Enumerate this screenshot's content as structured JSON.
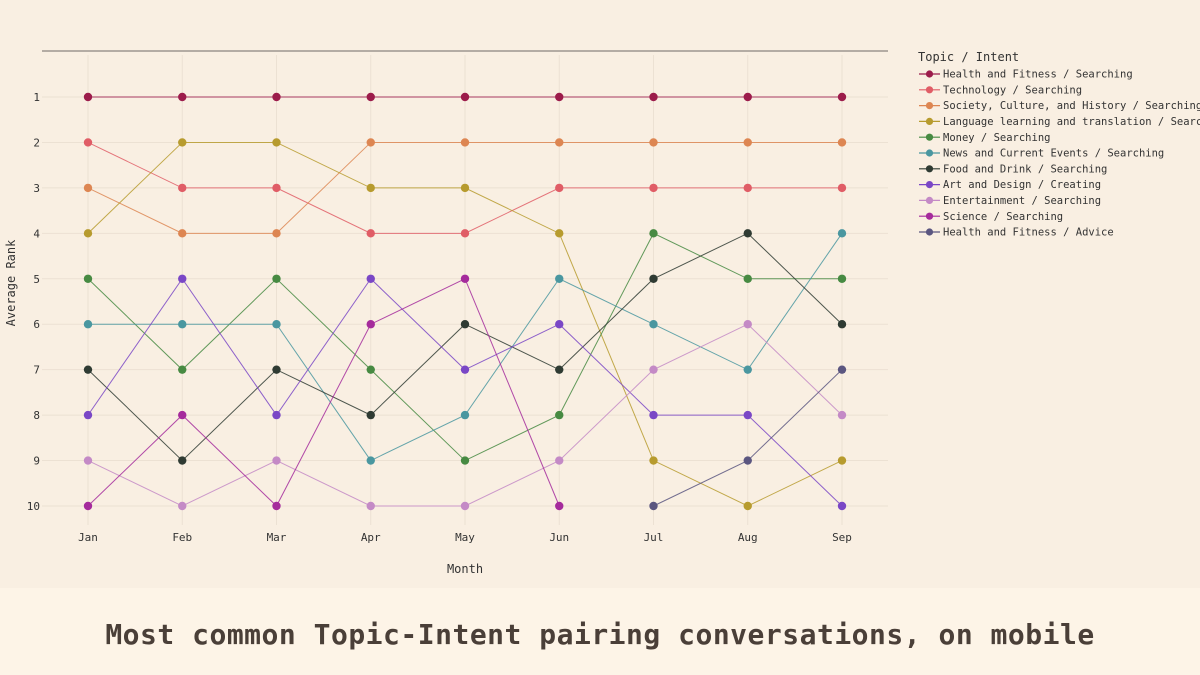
{
  "caption": "Most common Topic-Intent pairing conversations, on mobile",
  "chart_data": {
    "type": "line",
    "subtype": "bump",
    "xlabel": "Month",
    "ylabel": "Average Rank",
    "categories": [
      "Jan",
      "Feb",
      "Mar",
      "Apr",
      "May",
      "Jun",
      "Jul",
      "Aug",
      "Sep"
    ],
    "y_ticks": [
      1,
      2,
      3,
      4,
      5,
      6,
      7,
      8,
      9,
      10
    ],
    "ylim": [
      10,
      1
    ],
    "y_reversed": true,
    "grid": true,
    "legend_title": "Topic / Intent",
    "legend_position": "right",
    "series": [
      {
        "name": "Health and Fitness / Searching",
        "color": "#9c1c4b",
        "values": [
          1,
          1,
          1,
          1,
          1,
          1,
          1,
          1,
          1
        ]
      },
      {
        "name": "Technology / Searching",
        "color": "#e05d66",
        "values": [
          2,
          3,
          3,
          4,
          4,
          3,
          3,
          3,
          3
        ]
      },
      {
        "name": "Society, Culture, and History / Searching",
        "color": "#dd8652",
        "values": [
          3,
          4,
          4,
          2,
          2,
          2,
          2,
          2,
          2
        ]
      },
      {
        "name": "Language learning and translation / Searching",
        "color": "#b79b2e",
        "values": [
          4,
          2,
          2,
          3,
          3,
          4,
          9,
          10,
          9
        ]
      },
      {
        "name": "Money / Searching",
        "color": "#478a42",
        "values": [
          5,
          7,
          5,
          7,
          9,
          8,
          4,
          5,
          5
        ]
      },
      {
        "name": "News and Current Events / Searching",
        "color": "#4a97a0",
        "values": [
          6,
          6,
          6,
          9,
          8,
          5,
          6,
          7,
          4
        ]
      },
      {
        "name": "Food and Drink / Searching",
        "color": "#2f3b33",
        "values": [
          7,
          9,
          7,
          8,
          6,
          7,
          5,
          4,
          6
        ]
      },
      {
        "name": "Art and Design / Creating",
        "color": "#7a47c6",
        "values": [
          8,
          5,
          8,
          5,
          7,
          6,
          8,
          8,
          10
        ]
      },
      {
        "name": "Entertainment / Searching",
        "color": "#c48ac6",
        "values": [
          9,
          10,
          9,
          10,
          10,
          9,
          7,
          6,
          8
        ]
      },
      {
        "name": "Science / Searching",
        "color": "#a52b9c",
        "values": [
          10,
          8,
          10,
          6,
          5,
          10,
          null,
          null,
          null
        ]
      },
      {
        "name": "Health and Fitness / Advice",
        "color": "#5b5680",
        "values": [
          null,
          null,
          null,
          null,
          null,
          null,
          10,
          9,
          7
        ]
      }
    ]
  }
}
